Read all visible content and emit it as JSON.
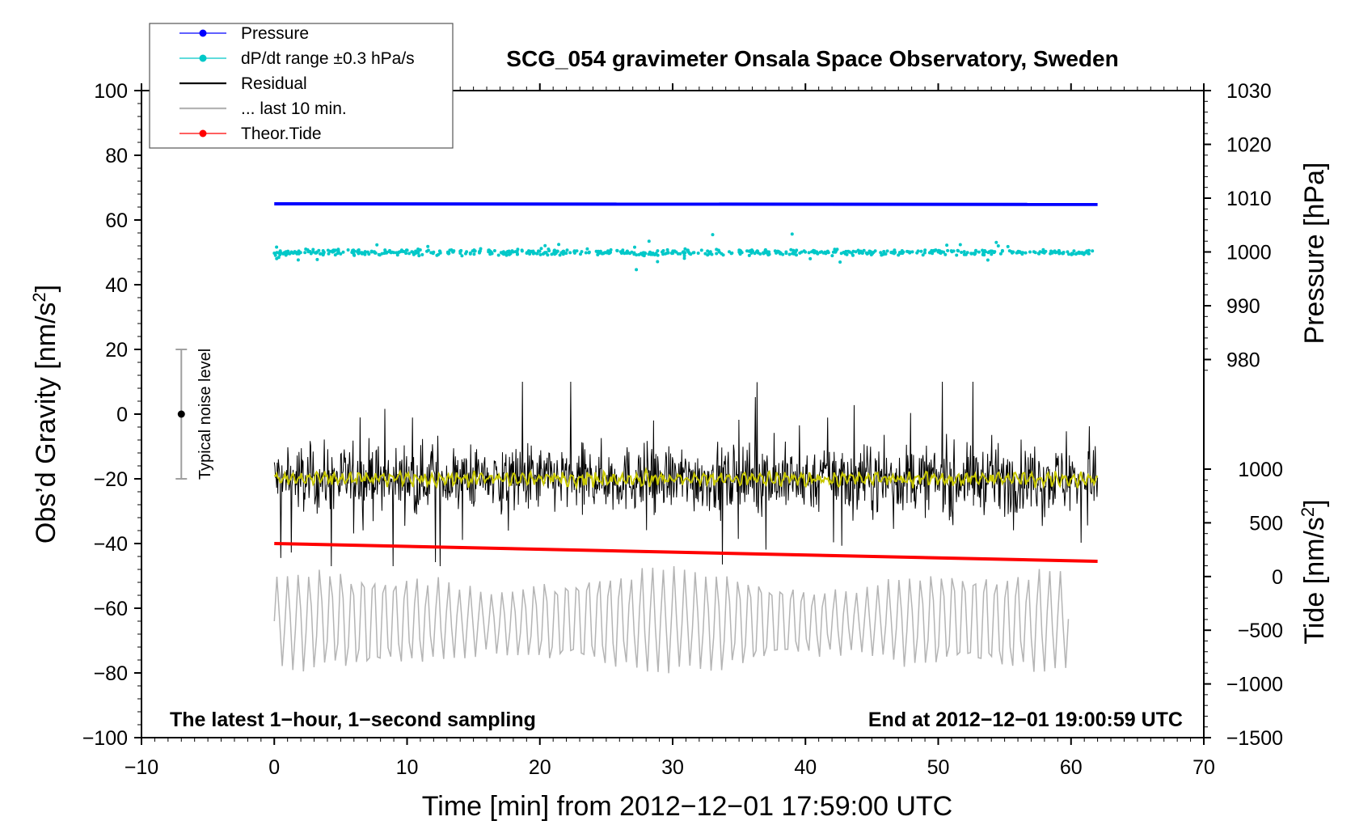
{
  "chart_data": {
    "type": "line",
    "title": "SCG_054 gravimeter Onsala Space Observatory, Sweden",
    "xlabel": "Time [min] from 2012−12−01 17:59:00 UTC",
    "ylabel": "Obs’d Gravity [nm/s²]",
    "ylabel_base": "Obs’d Gravity [nm/s",
    "ylabel_sup": "2",
    "ylabel_close": "]",
    "xlim": [
      -10,
      70
    ],
    "ylim": [
      -100,
      100
    ],
    "x_ticks": [
      "−10",
      "0",
      "10",
      "20",
      "30",
      "40",
      "50",
      "60",
      "70"
    ],
    "y_ticks": [
      "−100",
      "−80",
      "−60",
      "−40",
      "−20",
      "0",
      "20",
      "40",
      "60",
      "80",
      "100"
    ],
    "right_axes": {
      "pressure": {
        "label": "Pressure [hPa]",
        "ticks": [
          "1030",
          "1020",
          "1010",
          "1000",
          "990",
          "980"
        ],
        "tick_values": [
          1030,
          1020,
          1010,
          1000,
          990,
          980
        ]
      },
      "tide": {
        "label_base": "Tide [nm/s",
        "label_sup": "2",
        "label_close": "]",
        "ticks": [
          "1000",
          "500",
          "0",
          "−500",
          "−1000",
          "−1500"
        ],
        "tick_values": [
          1000,
          500,
          0,
          -500,
          -1000,
          -1500
        ]
      }
    },
    "legend": {
      "placement": "top-left",
      "entries": [
        {
          "label": "Pressure",
          "color": "#0000ff",
          "marker": true
        },
        {
          "label": "dP/dt range ±0.3 hPa/s",
          "color": "#00c8c8",
          "marker": true
        },
        {
          "label": "Residual",
          "color": "#000000",
          "marker": false
        },
        {
          "label": "... last 10 min.",
          "color": "#b4b4b4",
          "marker": false
        },
        {
          "label": "Theor.Tide",
          "color": "#ff0000",
          "marker": true
        }
      ]
    },
    "annotations": {
      "left": "The latest 1−hour, 1−second sampling",
      "right": "End at 2012−12−01 19:00:59 UTC",
      "noise": "Typical noise level"
    },
    "noise_bar": {
      "x": -7,
      "center": 0,
      "low": -20,
      "high": 20
    },
    "series": [
      {
        "name": "Pressure",
        "color": "#0000ff",
        "x_range": [
          0,
          62
        ],
        "display_start": 65,
        "display_end": 64.8,
        "style": "thick-line"
      },
      {
        "name": "dP/dt range ±0.3 hPa/s",
        "color": "#00c8c8",
        "x_range": [
          0,
          62
        ],
        "display_center": 50,
        "typical_spread": 1.5,
        "max_excursion": 9,
        "style": "dots"
      },
      {
        "name": "Residual",
        "color": "#000000",
        "x_range": [
          0,
          62
        ],
        "display_center": -20,
        "typical_spread": 10,
        "min": -47,
        "max": 10,
        "style": "thin-line"
      },
      {
        "name": "smoothed residual",
        "color": "#c8c800",
        "x_range": [
          0,
          62
        ],
        "display_center": -20,
        "typical_spread": 2.5,
        "style": "line"
      },
      {
        "name": "Theor.Tide",
        "color": "#ff0000",
        "x_range": [
          0,
          62
        ],
        "display_start": -40,
        "display_end": -45.5,
        "style": "thick-line"
      },
      {
        "name": "... last 10 min.",
        "color": "#b4b4b4",
        "x_range": [
          0,
          59.8
        ],
        "display_center": -64,
        "min": -82,
        "max": -44,
        "style": "line"
      }
    ]
  }
}
